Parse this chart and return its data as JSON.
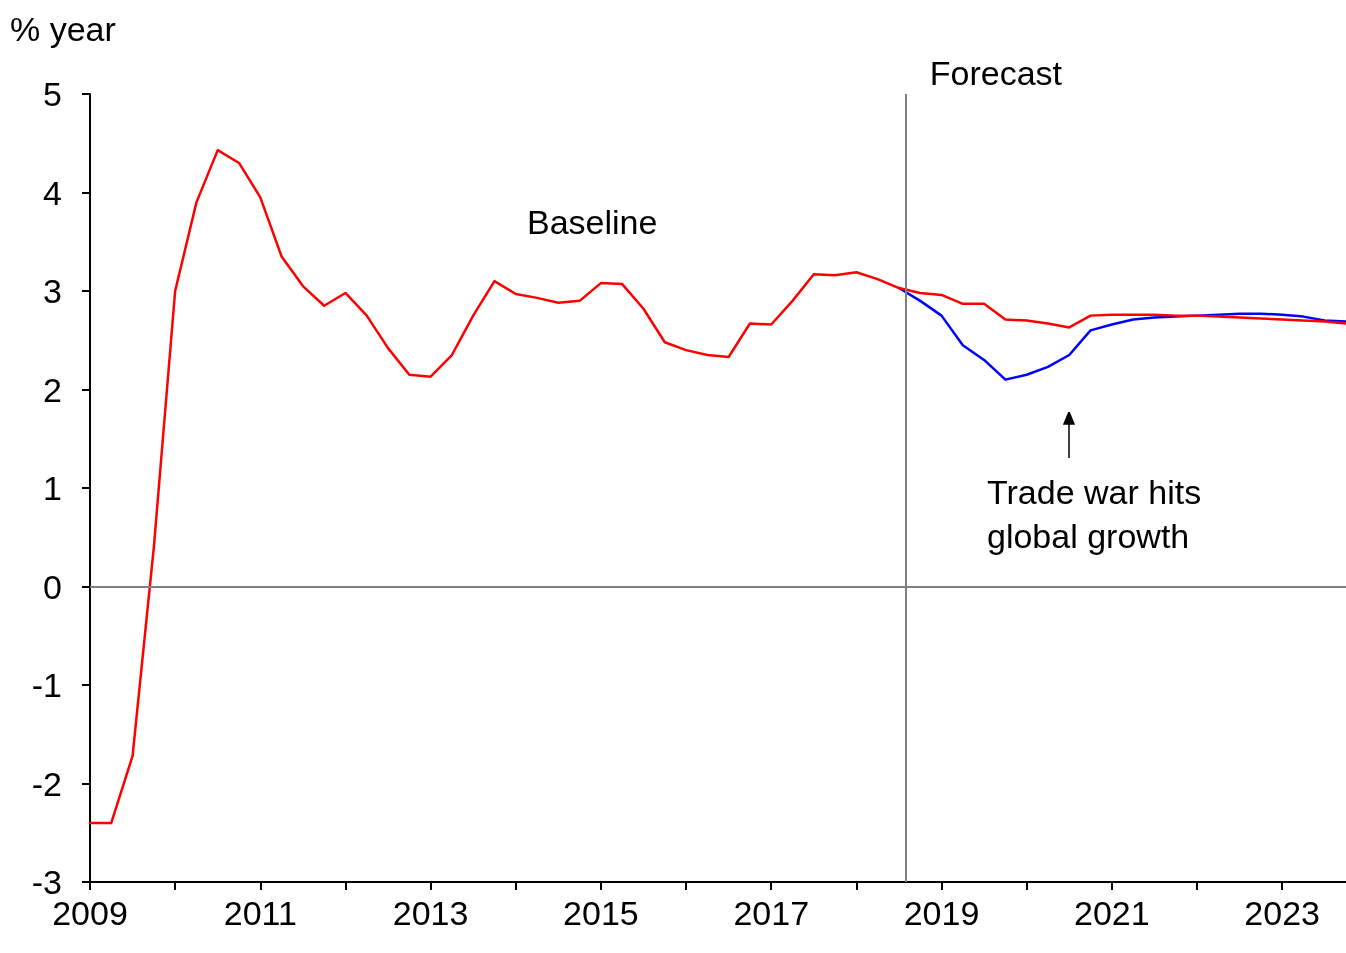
{
  "chart_data": {
    "type": "line",
    "ylabel": "% year",
    "xlim": [
      2009,
      2023.75
    ],
    "ylim": [
      -3,
      5
    ],
    "xticks": [
      2009,
      {
        "value": 2010,
        "label": null
      },
      2011,
      {
        "value": 2012,
        "label": null
      },
      2013,
      {
        "value": 2014,
        "label": null
      },
      2015,
      {
        "value": 2016,
        "label": null
      },
      2017,
      {
        "value": 2018,
        "label": null
      },
      2019,
      {
        "value": 2020,
        "label": null
      },
      2021,
      {
        "value": 2022,
        "label": null
      },
      2023
    ],
    "yticks": [
      -3,
      -2,
      -1,
      0,
      1,
      2,
      3,
      4,
      5
    ],
    "grid": false,
    "marker": "none",
    "line_style": "solid",
    "series": [
      {
        "color": "#0000ff",
        "x": [
          2018.5,
          2018.75,
          2019,
          2019.25,
          2019.5,
          2019.75,
          2020,
          2020.25,
          2020.5,
          2020.75,
          2021,
          2021.25,
          2021.5,
          2021.75,
          2022,
          2022.25,
          2022.5,
          2022.75,
          2023,
          2023.25,
          2023.5,
          2023.75
        ],
        "values": [
          3.03,
          2.9,
          2.75,
          2.45,
          2.3,
          2.1,
          2.15,
          2.23,
          2.35,
          2.6,
          2.66,
          2.71,
          2.73,
          2.74,
          2.75,
          2.76,
          2.77,
          2.77,
          2.76,
          2.74,
          2.7,
          2.69
        ]
      },
      {
        "color": "#ff0000",
        "x": [
          2009,
          2009.25,
          2009.5,
          2009.75,
          2010,
          2010.25,
          2010.5,
          2010.75,
          2011,
          2011.25,
          2011.5,
          2011.75,
          2012,
          2012.25,
          2012.5,
          2012.75,
          2013,
          2013.25,
          2013.5,
          2013.75,
          2014,
          2014.25,
          2014.5,
          2014.75,
          2015,
          2015.25,
          2015.5,
          2015.75,
          2016,
          2016.25,
          2016.5,
          2016.75,
          2017,
          2017.25,
          2017.5,
          2017.75,
          2018,
          2018.25,
          2018.5,
          2018.75,
          2019,
          2019.25,
          2019.5,
          2019.75,
          2020,
          2020.25,
          2020.5,
          2020.75,
          2021,
          2021.25,
          2021.5,
          2021.75,
          2022,
          2022.25,
          2022.5,
          2022.75,
          2023,
          2023.25,
          2023.5,
          2023.75
        ],
        "values": [
          -2.4,
          -2.4,
          -1.72,
          0.4,
          3.0,
          3.9,
          4.43,
          4.3,
          3.95,
          3.35,
          3.05,
          2.85,
          2.98,
          2.75,
          2.42,
          2.15,
          2.13,
          2.35,
          2.75,
          3.1,
          2.97,
          2.93,
          2.88,
          2.9,
          3.08,
          3.07,
          2.82,
          2.48,
          2.4,
          2.35,
          2.33,
          2.67,
          2.66,
          2.9,
          3.17,
          3.16,
          3.19,
          3.12,
          3.03,
          2.98,
          2.96,
          2.87,
          2.87,
          2.71,
          2.7,
          2.67,
          2.63,
          2.75,
          2.76,
          2.76,
          2.76,
          2.75,
          2.75,
          2.74,
          2.73,
          2.72,
          2.71,
          2.7,
          2.69,
          2.67
        ]
      }
    ],
    "ref_lines": [
      {
        "axis": "x",
        "value": 2018.58,
        "label": "Forecast",
        "color": "#808080"
      },
      {
        "axis": "y",
        "value": 0,
        "color": "#808080"
      }
    ],
    "annotations": [
      "Baseline",
      "Trade war hits\nglobal growth"
    ]
  }
}
